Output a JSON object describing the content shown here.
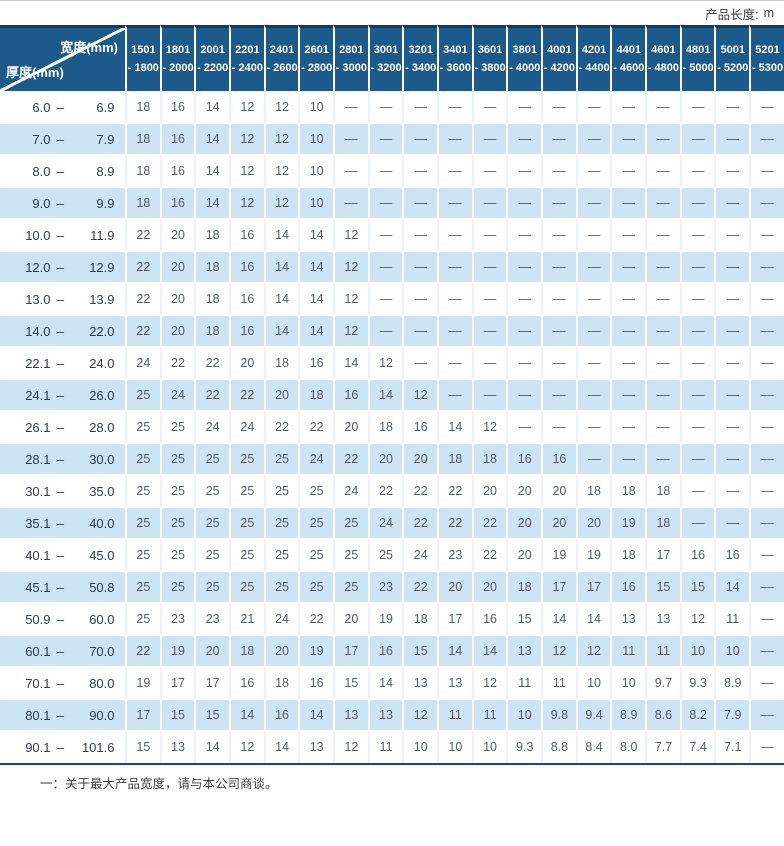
{
  "page": {
    "unit_label": "产品长度:",
    "unit_value": "m"
  },
  "table": {
    "corner": {
      "width_label": "宽度(mm)",
      "thickness_label": "厚度(mm)"
    },
    "range_separator": "–",
    "columns": [
      {
        "line1": "1501",
        "line2": "- 1800"
      },
      {
        "line1": "1801",
        "line2": "- 2000"
      },
      {
        "line1": "2001",
        "line2": "- 2200"
      },
      {
        "line1": "2201",
        "line2": "- 2400"
      },
      {
        "line1": "2401",
        "line2": "- 2600"
      },
      {
        "line1": "2601",
        "line2": "- 2800"
      },
      {
        "line1": "2801",
        "line2": "- 3000"
      },
      {
        "line1": "3001",
        "line2": "- 3200"
      },
      {
        "line1": "3201",
        "line2": "- 3400"
      },
      {
        "line1": "3401",
        "line2": "- 3600"
      },
      {
        "line1": "3601",
        "line2": "- 3800"
      },
      {
        "line1": "3801",
        "line2": "- 4000"
      },
      {
        "line1": "4001",
        "line2": "- 4200"
      },
      {
        "line1": "4201",
        "line2": "- 4400"
      },
      {
        "line1": "4401",
        "line2": "- 4600"
      },
      {
        "line1": "4601",
        "line2": "- 4800"
      },
      {
        "line1": "4801",
        "line2": "- 5000"
      },
      {
        "line1": "5001",
        "line2": "- 5200"
      },
      {
        "line1": "5201",
        "line2": "- 5300"
      }
    ],
    "rows": [
      {
        "from": "6.0",
        "to": "6.9",
        "values": [
          "18",
          "16",
          "14",
          "12",
          "12",
          "10",
          "—",
          "—",
          "—",
          "—",
          "—",
          "—",
          "—",
          "—",
          "—",
          "—",
          "—",
          "—",
          "—"
        ]
      },
      {
        "from": "7.0",
        "to": "7.9",
        "values": [
          "18",
          "16",
          "14",
          "12",
          "12",
          "10",
          "—",
          "—",
          "—",
          "—",
          "—",
          "—",
          "—",
          "—",
          "—",
          "—",
          "—",
          "—",
          "—"
        ]
      },
      {
        "from": "8.0",
        "to": "8.9",
        "values": [
          "18",
          "16",
          "14",
          "12",
          "12",
          "10",
          "—",
          "—",
          "—",
          "—",
          "—",
          "—",
          "—",
          "—",
          "—",
          "—",
          "—",
          "—",
          "—"
        ]
      },
      {
        "from": "9.0",
        "to": "9.9",
        "values": [
          "18",
          "16",
          "14",
          "12",
          "12",
          "10",
          "—",
          "—",
          "—",
          "—",
          "—",
          "—",
          "—",
          "—",
          "—",
          "—",
          "—",
          "—",
          "—"
        ]
      },
      {
        "from": "10.0",
        "to": "11.9",
        "values": [
          "22",
          "20",
          "18",
          "16",
          "14",
          "14",
          "12",
          "—",
          "—",
          "—",
          "—",
          "—",
          "—",
          "—",
          "—",
          "—",
          "—",
          "—",
          "—"
        ]
      },
      {
        "from": "12.0",
        "to": "12.9",
        "values": [
          "22",
          "20",
          "18",
          "16",
          "14",
          "14",
          "12",
          "—",
          "—",
          "—",
          "—",
          "—",
          "—",
          "—",
          "—",
          "—",
          "—",
          "—",
          "—"
        ]
      },
      {
        "from": "13.0",
        "to": "13.9",
        "values": [
          "22",
          "20",
          "18",
          "16",
          "14",
          "14",
          "12",
          "—",
          "—",
          "—",
          "—",
          "—",
          "—",
          "—",
          "—",
          "—",
          "—",
          "—",
          "—"
        ]
      },
      {
        "from": "14.0",
        "to": "22.0",
        "values": [
          "22",
          "20",
          "18",
          "16",
          "14",
          "14",
          "12",
          "—",
          "—",
          "—",
          "—",
          "—",
          "—",
          "—",
          "—",
          "—",
          "—",
          "—",
          "—"
        ]
      },
      {
        "from": "22.1",
        "to": "24.0",
        "values": [
          "24",
          "22",
          "22",
          "20",
          "18",
          "16",
          "14",
          "12",
          "—",
          "—",
          "—",
          "—",
          "—",
          "—",
          "—",
          "—",
          "—",
          "—",
          "—"
        ]
      },
      {
        "from": "24.1",
        "to": "26.0",
        "values": [
          "25",
          "24",
          "22",
          "22",
          "20",
          "18",
          "16",
          "14",
          "12",
          "—",
          "—",
          "—",
          "—",
          "—",
          "—",
          "—",
          "—",
          "—",
          "—"
        ]
      },
      {
        "from": "26.1",
        "to": "28.0",
        "values": [
          "25",
          "25",
          "24",
          "24",
          "22",
          "22",
          "20",
          "18",
          "16",
          "14",
          "12",
          "—",
          "—",
          "—",
          "—",
          "—",
          "—",
          "—",
          "—"
        ]
      },
      {
        "from": "28.1",
        "to": "30.0",
        "values": [
          "25",
          "25",
          "25",
          "25",
          "25",
          "24",
          "22",
          "20",
          "20",
          "18",
          "18",
          "16",
          "16",
          "—",
          "—",
          "—",
          "—",
          "—",
          "—"
        ]
      },
      {
        "from": "30.1",
        "to": "35.0",
        "values": [
          "25",
          "25",
          "25",
          "25",
          "25",
          "25",
          "24",
          "22",
          "22",
          "22",
          "20",
          "20",
          "20",
          "18",
          "18",
          "18",
          "—",
          "—",
          "—"
        ]
      },
      {
        "from": "35.1",
        "to": "40.0",
        "values": [
          "25",
          "25",
          "25",
          "25",
          "25",
          "25",
          "25",
          "24",
          "22",
          "22",
          "22",
          "20",
          "20",
          "20",
          "19",
          "18",
          "—",
          "—",
          "—"
        ]
      },
      {
        "from": "40.1",
        "to": "45.0",
        "values": [
          "25",
          "25",
          "25",
          "25",
          "25",
          "25",
          "25",
          "25",
          "24",
          "23",
          "22",
          "20",
          "19",
          "19",
          "18",
          "17",
          "16",
          "16",
          "—"
        ]
      },
      {
        "from": "45.1",
        "to": "50.8",
        "values": [
          "25",
          "25",
          "25",
          "25",
          "25",
          "25",
          "25",
          "23",
          "22",
          "20",
          "20",
          "18",
          "17",
          "17",
          "16",
          "15",
          "15",
          "14",
          "—"
        ]
      },
      {
        "from": "50.9",
        "to": "60.0",
        "values": [
          "25",
          "23",
          "23",
          "21",
          "24",
          "22",
          "20",
          "19",
          "18",
          "17",
          "16",
          "15",
          "14",
          "14",
          "13",
          "13",
          "12",
          "11",
          "—"
        ]
      },
      {
        "from": "60.1",
        "to": "70.0",
        "values": [
          "22",
          "19",
          "20",
          "18",
          "20",
          "19",
          "17",
          "16",
          "15",
          "14",
          "14",
          "13",
          "12",
          "12",
          "11",
          "11",
          "10",
          "10",
          "—"
        ]
      },
      {
        "from": "70.1",
        "to": "80.0",
        "values": [
          "19",
          "17",
          "17",
          "16",
          "18",
          "16",
          "15",
          "14",
          "13",
          "13",
          "12",
          "11",
          "11",
          "10",
          "10",
          "9.7",
          "9.3",
          "8.9",
          "—"
        ]
      },
      {
        "from": "80.1",
        "to": "90.0",
        "values": [
          "17",
          "15",
          "15",
          "14",
          "16",
          "14",
          "13",
          "13",
          "12",
          "11",
          "11",
          "10",
          "9.8",
          "9.4",
          "8.9",
          "8.6",
          "8.2",
          "7.9",
          "—"
        ]
      },
      {
        "from": "90.1",
        "to": "101.6",
        "values": [
          "15",
          "13",
          "14",
          "12",
          "14",
          "13",
          "12",
          "11",
          "10",
          "10",
          "10",
          "9.3",
          "8.8",
          "8.4",
          "8.0",
          "7.7",
          "7.4",
          "7.1",
          "—"
        ]
      }
    ]
  },
  "footer": {
    "note": "一：关于最大产品宽度，请与本公司商谈。"
  }
}
